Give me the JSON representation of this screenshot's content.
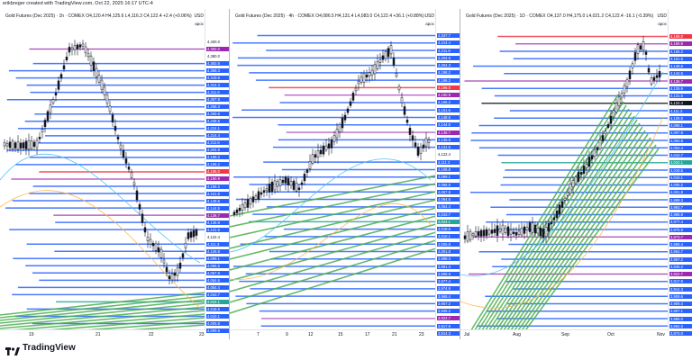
{
  "header": {
    "creator": "erikbreger created with TradingView.com, Oct 22, 2025 16:17 UTC-4"
  },
  "brand": {
    "name": "TradingView"
  },
  "colors": {
    "blue": "#2962ff",
    "purple": "#9c27b0",
    "green": "#4caf50",
    "teal": "#26a69a",
    "red": "#f23645",
    "black": "#131722"
  },
  "panels": [
    {
      "title": "Gold Futures (Dec 2025) · 1h · COMEX  O4,120.4  H4,125.6  L4,116.3  C4,122.4  +2.4 (+0.06%)",
      "currency": "USD",
      "unit": "apoc",
      "x_labels": [
        "19",
        "21",
        "22",
        "23"
      ],
      "price_tags": [
        {
          "t": "4,400.0",
          "c": "#ffffff"
        },
        {
          "t": "4,392.0",
          "c": "#9c27b0"
        },
        {
          "t": "4,380.0",
          "c": "#ffffff"
        },
        {
          "t": "4,362.6",
          "c": "#2962ff"
        },
        {
          "t": "4,358.3",
          "c": "#2962ff"
        },
        {
          "t": "4,319.6",
          "c": "#2962ff"
        },
        {
          "t": "4,314.3",
          "c": "#2962ff"
        },
        {
          "t": "4,311.6",
          "c": "#2962ff"
        },
        {
          "t": "4,307.9",
          "c": "#2962ff"
        },
        {
          "t": "4,258.3",
          "c": "#2962ff"
        },
        {
          "t": "4,256.6",
          "c": "#2962ff"
        },
        {
          "t": "4,246.5",
          "c": "#2962ff"
        },
        {
          "t": "4,224.1",
          "c": "#2962ff"
        },
        {
          "t": "4,214.4",
          "c": "#2962ff"
        },
        {
          "t": "4,211.8",
          "c": "#2962ff"
        },
        {
          "t": "4,204.9",
          "c": "#2962ff"
        },
        {
          "t": "4,198.2",
          "c": "#2962ff"
        },
        {
          "t": "4,196.2",
          "c": "#2962ff"
        },
        {
          "t": "4,196.0",
          "c": "#f23645"
        },
        {
          "t": "4,190.9",
          "c": "#9c27b0"
        },
        {
          "t": "4,166.2",
          "c": "#2962ff"
        },
        {
          "t": "4,161.6",
          "c": "#2962ff"
        },
        {
          "t": "4,148.6",
          "c": "#2962ff"
        },
        {
          "t": "4,144.5",
          "c": "#2962ff"
        },
        {
          "t": "4,136.7",
          "c": "#9c27b0"
        },
        {
          "t": "4,135.9",
          "c": "#2962ff"
        },
        {
          "t": "4,131.5",
          "c": "#2962ff"
        },
        {
          "t": "4,122.4",
          "c": "#ffffff"
        },
        {
          "t": "4,111.3",
          "c": "#2962ff"
        },
        {
          "t": "4,106.8",
          "c": "#2962ff"
        },
        {
          "t": "4,099.1",
          "c": "#2962ff"
        },
        {
          "t": "4,096.5",
          "c": "#2962ff"
        },
        {
          "t": "4,067.8",
          "c": "#2962ff"
        },
        {
          "t": "4,064.6",
          "c": "#2962ff"
        },
        {
          "t": "4,054.4",
          "c": "#2962ff"
        },
        {
          "t": "4,043.7",
          "c": "#2962ff"
        },
        {
          "t": "4,024.1",
          "c": "#26a69a"
        },
        {
          "t": "4,018.5",
          "c": "#2962ff"
        },
        {
          "t": "4,010.1",
          "c": "#2962ff"
        },
        {
          "t": "4,005.8",
          "c": "#2962ff"
        },
        {
          "t": "4,005.6",
          "c": "#2962ff"
        }
      ]
    },
    {
      "title": "Gold Futures (Dec 2025) · 4h · COMEX  O4,086.5  H4,131.4  L4,083.0  C4,122.4  +36.1 (+0.88%)",
      "currency": "USD",
      "unit": "apoc",
      "x_labels": [
        "7",
        "9",
        "12",
        "15",
        "17",
        "21",
        "23"
      ],
      "price_tags": [
        {
          "t": "4,347.7",
          "c": "#2962ff"
        },
        {
          "t": "4,214.4",
          "c": "#2962ff"
        },
        {
          "t": "4,211.8",
          "c": "#2962ff"
        },
        {
          "t": "4,204.9",
          "c": "#2962ff"
        },
        {
          "t": "4,204.3",
          "c": "#2962ff"
        },
        {
          "t": "4,198.2",
          "c": "#2962ff"
        },
        {
          "t": "4,196.2",
          "c": "#2962ff"
        },
        {
          "t": "4,196.0",
          "c": "#f23645"
        },
        {
          "t": "4,190.9",
          "c": "#9c27b0"
        },
        {
          "t": "4,166.2",
          "c": "#2962ff"
        },
        {
          "t": "4,161.6",
          "c": "#2962ff"
        },
        {
          "t": "4,148.6",
          "c": "#2962ff"
        },
        {
          "t": "4,144.5",
          "c": "#2962ff"
        },
        {
          "t": "4,136.7",
          "c": "#9c27b0"
        },
        {
          "t": "4,135.9",
          "c": "#2962ff"
        },
        {
          "t": "4,131.5",
          "c": "#2962ff"
        },
        {
          "t": "4,122.4",
          "c": "#ffffff"
        },
        {
          "t": "4,111.3",
          "c": "#2962ff"
        },
        {
          "t": "4,106.8",
          "c": "#2962ff"
        },
        {
          "t": "4,099.1",
          "c": "#2962ff"
        },
        {
          "t": "4,096.5",
          "c": "#2962ff"
        },
        {
          "t": "4,067.8",
          "c": "#2962ff"
        },
        {
          "t": "4,064.6",
          "c": "#2962ff"
        },
        {
          "t": "4,054.4",
          "c": "#2962ff"
        },
        {
          "t": "4,043.7",
          "c": "#2962ff"
        },
        {
          "t": "4,024.1",
          "c": "#26a69a"
        },
        {
          "t": "4,018.5",
          "c": "#2962ff"
        },
        {
          "t": "4,010.1",
          "c": "#2962ff"
        },
        {
          "t": "4,005.8",
          "c": "#2962ff"
        },
        {
          "t": "4,001.8",
          "c": "#2962ff"
        },
        {
          "t": "3,998.3",
          "c": "#2962ff"
        },
        {
          "t": "3,991.3",
          "c": "#2962ff"
        },
        {
          "t": "3,988.9",
          "c": "#2962ff"
        },
        {
          "t": "3,977.4",
          "c": "#2962ff"
        },
        {
          "t": "3,974.9",
          "c": "#2962ff"
        },
        {
          "t": "3,968.4",
          "c": "#2962ff"
        },
        {
          "t": "3,957.2",
          "c": "#2962ff"
        },
        {
          "t": "3,945.2",
          "c": "#2962ff"
        },
        {
          "t": "3,922.7",
          "c": "#9c27b0"
        },
        {
          "t": "3,917.9",
          "c": "#2962ff"
        },
        {
          "t": "3,914.3",
          "c": "#2962ff"
        }
      ]
    },
    {
      "title": "Gold Futures (Dec 2025) · 1D · COMEX  O4,137.0  H4,175.0  L4,021.2  C4,122.4  -16.1 (-0.39%)",
      "currency": "USD",
      "unit": "apoc",
      "x_labels": [
        "Jul",
        "Aug",
        "Sep",
        "Oct",
        "Nov"
      ],
      "price_tags": [
        {
          "t": "4,196.0",
          "c": "#f23645"
        },
        {
          "t": "4,190.9",
          "c": "#9c27b0"
        },
        {
          "t": "4,166.2",
          "c": "#2962ff"
        },
        {
          "t": "4,161.6",
          "c": "#2962ff"
        },
        {
          "t": "4,148.6",
          "c": "#2962ff"
        },
        {
          "t": "4,144.5",
          "c": "#2962ff"
        },
        {
          "t": "4,136.7",
          "c": "#9c27b0"
        },
        {
          "t": "4,135.9",
          "c": "#2962ff"
        },
        {
          "t": "4,131.5",
          "c": "#2962ff"
        },
        {
          "t": "4,122.4",
          "c": "#131722"
        },
        {
          "t": "4,111.3",
          "c": "#2962ff"
        },
        {
          "t": "4,106.8",
          "c": "#2962ff"
        },
        {
          "t": "4,099.1",
          "c": "#2962ff"
        },
        {
          "t": "4,067.8",
          "c": "#2962ff"
        },
        {
          "t": "4,064.6",
          "c": "#2962ff"
        },
        {
          "t": "4,054.4",
          "c": "#2962ff"
        },
        {
          "t": "4,043.7",
          "c": "#2962ff"
        },
        {
          "t": "4,024.1",
          "c": "#26a69a"
        },
        {
          "t": "4,018.5",
          "c": "#2962ff"
        },
        {
          "t": "4,010.1",
          "c": "#2962ff"
        },
        {
          "t": "4,005.2",
          "c": "#2962ff"
        },
        {
          "t": "4,001.8",
          "c": "#2962ff"
        },
        {
          "t": "3,998.3",
          "c": "#2962ff"
        },
        {
          "t": "3,993.7",
          "c": "#2962ff"
        },
        {
          "t": "3,988.9",
          "c": "#2962ff"
        },
        {
          "t": "3,977.4",
          "c": "#2962ff"
        },
        {
          "t": "3,975.9",
          "c": "#2962ff"
        },
        {
          "t": "3,973.7",
          "c": "#9c27b0"
        },
        {
          "t": "3,968.4",
          "c": "#2962ff"
        },
        {
          "t": "3,964.7",
          "c": "#2962ff"
        },
        {
          "t": "3,957.2",
          "c": "#2962ff"
        },
        {
          "t": "3,945.2",
          "c": "#2962ff"
        },
        {
          "t": "3,922.7",
          "c": "#9c27b0"
        },
        {
          "t": "3,917.9",
          "c": "#2962ff"
        },
        {
          "t": "3,914.3",
          "c": "#2962ff"
        },
        {
          "t": "3,909.6",
          "c": "#2962ff"
        },
        {
          "t": "3,909.4",
          "c": "#2962ff"
        },
        {
          "t": "3,907.1",
          "c": "#2962ff"
        },
        {
          "t": "3,886.0",
          "c": "#2962ff"
        },
        {
          "t": "3,884.0",
          "c": "#2962ff"
        },
        {
          "t": "3,874.0",
          "c": "#2962ff"
        }
      ]
    }
  ]
}
